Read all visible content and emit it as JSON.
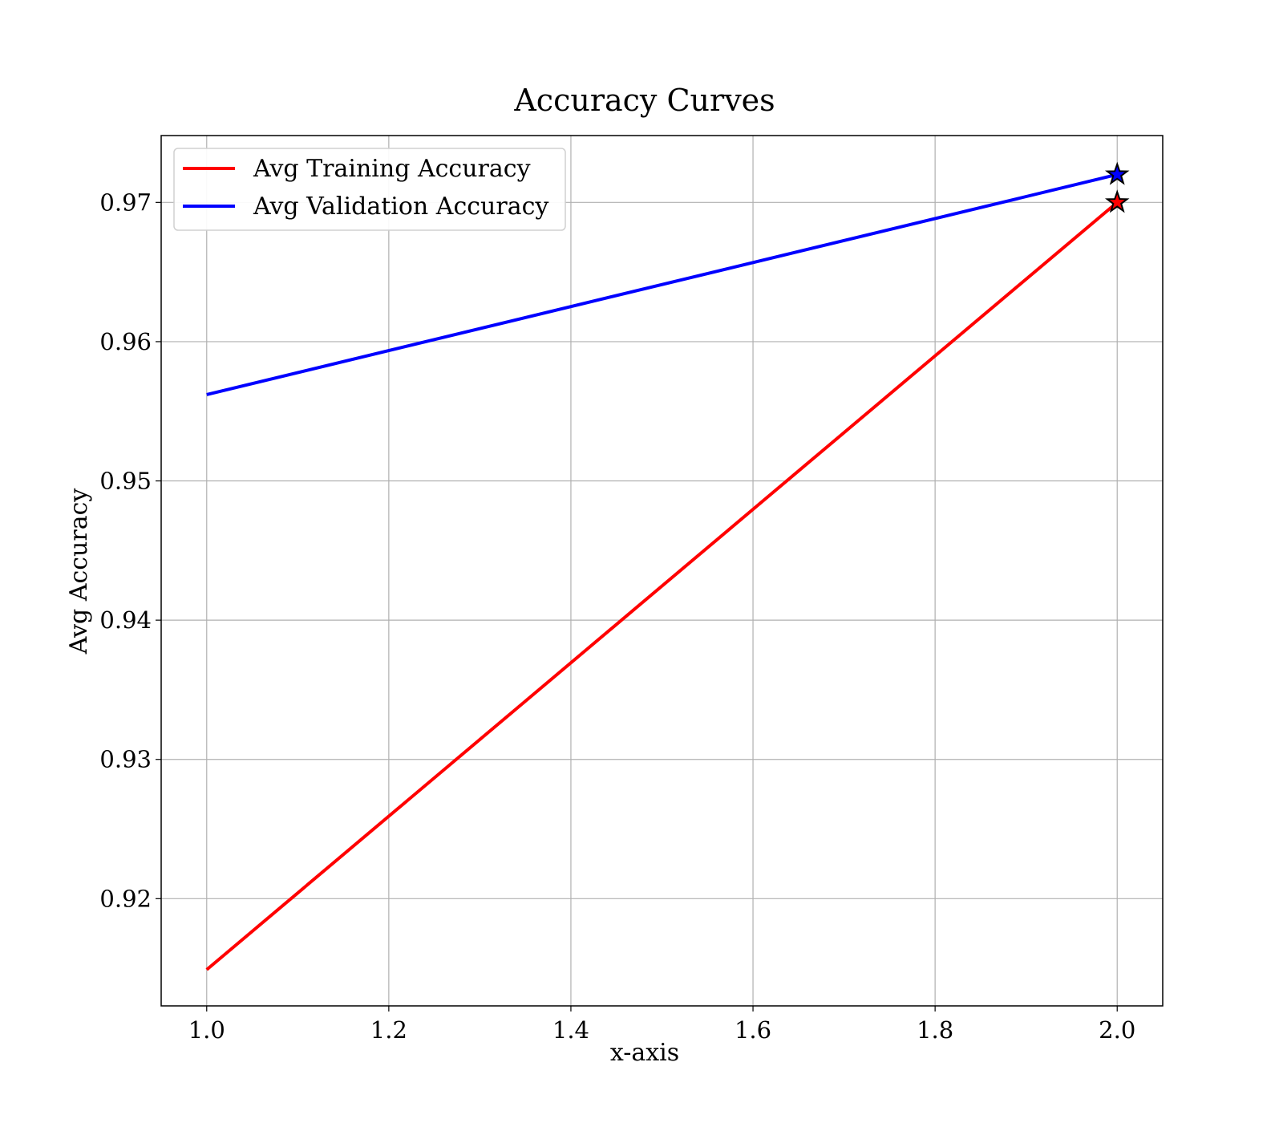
{
  "chart_data": {
    "type": "line",
    "title": "Accuracy Curves",
    "xlabel": "x-axis",
    "ylabel": "Avg Accuracy",
    "xlim": [
      0.95,
      2.05
    ],
    "ylim": [
      0.9123,
      0.9748
    ],
    "xticks": [
      1.0,
      1.2,
      1.4,
      1.6,
      1.8,
      2.0
    ],
    "xtick_labels": [
      "1.0",
      "1.2",
      "1.4",
      "1.6",
      "1.8",
      "2.0"
    ],
    "yticks": [
      0.92,
      0.93,
      0.94,
      0.95,
      0.96,
      0.97
    ],
    "ytick_labels": [
      "0.92",
      "0.93",
      "0.94",
      "0.95",
      "0.96",
      "0.97"
    ],
    "grid": true,
    "legend_position": "top-left",
    "series": [
      {
        "name": "Avg Training Accuracy",
        "color": "#ff0000",
        "x": [
          1.0,
          2.0
        ],
        "y": [
          0.9149,
          0.97
        ],
        "marker": "star at final point"
      },
      {
        "name": "Avg Validation Accuracy",
        "color": "#0000ff",
        "x": [
          1.0,
          2.0
        ],
        "y": [
          0.9562,
          0.972
        ],
        "marker": "star at final point"
      }
    ]
  }
}
